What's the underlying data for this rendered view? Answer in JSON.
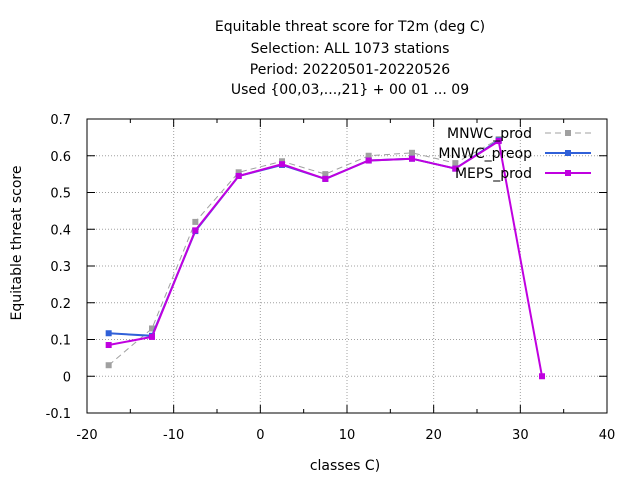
{
  "title_lines": [
    "Equitable threat score  for T2m (deg C)",
    "Selection: ALL    1073 stations",
    "Period: 20220501-20220526",
    "Used {00,03,...,21} + 00 01 ... 09"
  ],
  "chart_data": {
    "type": "line",
    "xlabel": "classes C)",
    "ylabel": "Equitable threat score",
    "xlim": [
      -20,
      40
    ],
    "ylim": [
      -0.1,
      0.7
    ],
    "xticks": [
      -20,
      -10,
      0,
      10,
      20,
      30,
      40
    ],
    "yticks": [
      -0.1,
      0,
      0.1,
      0.2,
      0.3,
      0.4,
      0.5,
      0.6,
      0.7
    ],
    "grid": true,
    "legend_position": "top-right",
    "series": [
      {
        "name": "MNWC_prod",
        "color": "#a0a0a0",
        "dashed": true,
        "x": [
          -17.5,
          -12.5,
          -7.5,
          -2.5,
          2.5,
          7.5,
          12.5,
          17.5,
          22.5,
          27.5
        ],
        "y": [
          0.03,
          0.13,
          0.42,
          0.555,
          0.585,
          0.55,
          0.6,
          0.608,
          0.58,
          0.645
        ]
      },
      {
        "name": "MNWC_preop",
        "color": "#3060d8",
        "dashed": false,
        "x": [
          -17.5,
          -12.5,
          -7.5,
          -2.5,
          2.5,
          7.5,
          12.5,
          17.5,
          22.5,
          27.5
        ],
        "y": [
          0.117,
          0.11,
          0.395,
          0.545,
          0.575,
          0.537,
          0.587,
          0.592,
          0.565,
          0.642
        ]
      },
      {
        "name": "MEPS_prod",
        "color": "#c000e0",
        "dashed": false,
        "x": [
          -17.5,
          -12.5,
          -7.5,
          -2.5,
          2.5,
          7.5,
          12.5,
          17.5,
          22.5,
          27.5,
          32.5
        ],
        "y": [
          0.085,
          0.107,
          0.397,
          0.545,
          0.577,
          0.537,
          0.587,
          0.592,
          0.565,
          0.64,
          0.0
        ]
      }
    ]
  }
}
